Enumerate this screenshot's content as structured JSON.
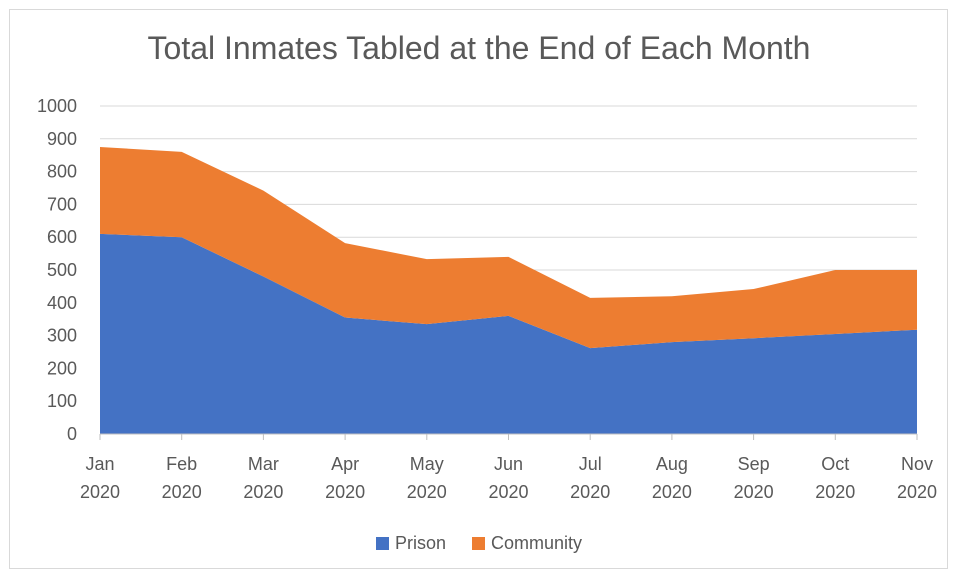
{
  "chart_data": {
    "type": "area",
    "stacked": true,
    "title": "Total Inmates Tabled at the End of Each Month",
    "categories": [
      [
        "Jan",
        "2020"
      ],
      [
        "Feb",
        "2020"
      ],
      [
        "Mar",
        "2020"
      ],
      [
        "Apr",
        "2020"
      ],
      [
        "May",
        "2020"
      ],
      [
        "Jun",
        "2020"
      ],
      [
        "Jul",
        "2020"
      ],
      [
        "Aug",
        "2020"
      ],
      [
        "Sep",
        "2020"
      ],
      [
        "Oct",
        "2020"
      ],
      [
        "Nov",
        "2020"
      ]
    ],
    "series": [
      {
        "name": "Prison",
        "color": "#4472C4",
        "values": [
          610,
          600,
          480,
          355,
          335,
          360,
          262,
          280,
          292,
          305,
          318
        ]
      },
      {
        "name": "Community",
        "color": "#ED7D31",
        "values": [
          265,
          260,
          262,
          227,
          198,
          180,
          153,
          140,
          150,
          195,
          182
        ]
      }
    ],
    "ylim": [
      0,
      1000
    ],
    "yticks": [
      0,
      100,
      200,
      300,
      400,
      500,
      600,
      700,
      800,
      900,
      1000
    ],
    "grid": true,
    "legend": "bottom"
  }
}
